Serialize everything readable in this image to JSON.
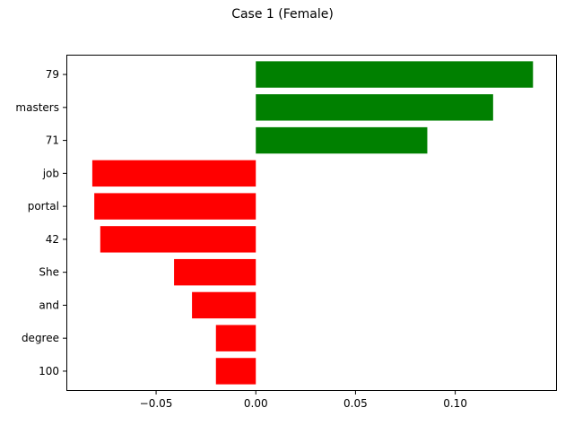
{
  "chart_data": {
    "type": "bar",
    "orientation": "horizontal",
    "title": "Case 1 (Female)",
    "xlabel": "",
    "ylabel": "",
    "categories": [
      "79",
      "masters",
      "71",
      "job",
      "portal",
      "42",
      "She",
      "and",
      "degree",
      "100"
    ],
    "values": [
      0.139,
      0.119,
      0.086,
      -0.082,
      -0.081,
      -0.078,
      -0.041,
      -0.032,
      -0.02,
      -0.02
    ],
    "xlim": [
      -0.095,
      0.151
    ],
    "xticks": [
      -0.05,
      0.0,
      0.05,
      0.1
    ],
    "xtick_labels": [
      "−0.05",
      "0.00",
      "0.05",
      "0.10"
    ],
    "colors": {
      "positive": "#008000",
      "negative": "#ff0000"
    },
    "grid": false,
    "legend": "none"
  }
}
